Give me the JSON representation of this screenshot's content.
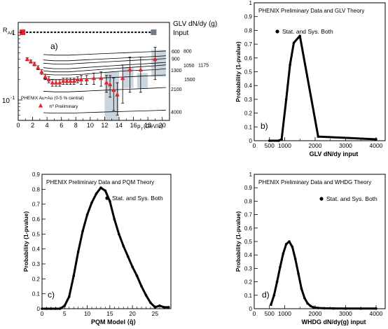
{
  "chart_data": [
    {
      "panel": "a)",
      "type": "scatter",
      "title": "",
      "xlabel_main": "p",
      "xlabel_sub": "T",
      "xlabel_unit": "(GeV/c)",
      "ylabel_main": "R",
      "ylabel_sub": "AA",
      "xlim": [
        0,
        21
      ],
      "ylim": [
        0.05,
        1.4
      ],
      "yscale": "log",
      "x_ticks": [
        0,
        2,
        4,
        6,
        8,
        10,
        12,
        14,
        16,
        18,
        20
      ],
      "y_tick_labels": [
        {
          "value": 1,
          "label": "1"
        },
        {
          "value": 0.1,
          "label": "10",
          "sup": "-1"
        }
      ],
      "theory_header": "GLV dN/dy (g)",
      "theory_header2": "Input",
      "theory_curves": [
        {
          "label": "600",
          "x": [
            3.5,
            5,
            7,
            9,
            11,
            13,
            15,
            17,
            19,
            20.5
          ],
          "y": [
            0.47,
            0.46,
            0.46,
            0.47,
            0.48,
            0.49,
            0.5,
            0.51,
            0.52,
            0.53
          ]
        },
        {
          "label": "800",
          "x": [
            3.5,
            5,
            7,
            9,
            11,
            13,
            15,
            17,
            19,
            20.5
          ],
          "y": [
            0.39,
            0.38,
            0.38,
            0.39,
            0.4,
            0.41,
            0.42,
            0.43,
            0.44,
            0.45
          ]
        },
        {
          "label": "900",
          "x": [
            3.5,
            5,
            7,
            9,
            11,
            13,
            15,
            17,
            19,
            20.5
          ],
          "y": [
            0.35,
            0.34,
            0.34,
            0.35,
            0.36,
            0.37,
            0.38,
            0.39,
            0.4,
            0.41
          ]
        },
        {
          "label": "1050",
          "x": [
            3.5,
            5,
            7,
            9,
            11,
            13,
            15,
            17,
            19,
            20.5
          ],
          "y": [
            0.3,
            0.29,
            0.29,
            0.3,
            0.31,
            0.32,
            0.33,
            0.34,
            0.35,
            0.36
          ]
        },
        {
          "label": "1175",
          "x": [
            3.5,
            5,
            7,
            9,
            11,
            13,
            15,
            17,
            19,
            20.5
          ],
          "y": [
            0.27,
            0.26,
            0.26,
            0.27,
            0.28,
            0.29,
            0.3,
            0.31,
            0.32,
            0.33
          ]
        },
        {
          "label": "1300",
          "x": [
            3.5,
            5,
            7,
            9,
            11,
            13,
            15,
            17,
            19,
            20.5
          ],
          "y": [
            0.24,
            0.235,
            0.235,
            0.24,
            0.25,
            0.26,
            0.27,
            0.275,
            0.28,
            0.29
          ]
        },
        {
          "label": "1500",
          "x": [
            3.5,
            5,
            7,
            9,
            11,
            13,
            15,
            17,
            19,
            20.5
          ],
          "y": [
            0.205,
            0.2,
            0.2,
            0.205,
            0.21,
            0.215,
            0.22,
            0.225,
            0.23,
            0.235
          ]
        },
        {
          "label": "2100",
          "x": [
            3.5,
            5,
            7,
            9,
            11,
            13,
            15,
            17,
            19,
            20.5
          ],
          "y": [
            0.135,
            0.132,
            0.132,
            0.135,
            0.138,
            0.141,
            0.144,
            0.147,
            0.15,
            0.153
          ]
        },
        {
          "label": "4000",
          "x": [
            3.5,
            5,
            7,
            9,
            11,
            13,
            15,
            17,
            19,
            20.5
          ],
          "y": [
            0.065,
            0.064,
            0.064,
            0.065,
            0.066,
            0.067,
            0.068,
            0.069,
            0.07,
            0.071
          ]
        }
      ],
      "series": [
        {
          "name": "π⁰ Preliminary",
          "legend_header": "PHENIX Au+Au (0-5 % central)",
          "x": [
            1.25,
            1.75,
            2.25,
            2.75,
            3.25,
            3.75,
            4.25,
            4.75,
            5.25,
            5.75,
            6.25,
            6.75,
            7.25,
            7.75,
            8.25,
            8.75,
            9.5,
            10.5,
            11.5,
            12.25,
            12.75,
            13.25,
            13.75,
            14.5,
            15.5,
            17,
            19
          ],
          "y": [
            0.4,
            0.37,
            0.34,
            0.3,
            0.26,
            0.22,
            0.2,
            0.18,
            0.18,
            0.18,
            0.19,
            0.19,
            0.19,
            0.19,
            0.2,
            0.2,
            0.2,
            0.21,
            0.21,
            0.18,
            0.17,
            0.14,
            0.12,
            0.21,
            0.28,
            0.28,
            0.4
          ],
          "yerr": [
            0.02,
            0.02,
            0.02,
            0.02,
            0.02,
            0.02,
            0.02,
            0.02,
            0.02,
            0.02,
            0.02,
            0.02,
            0.02,
            0.02,
            0.02,
            0.03,
            0.03,
            0.04,
            0.05,
            0.05,
            0.06,
            0.07,
            0.06,
            0.12,
            0.15,
            0.15,
            0.2
          ]
        }
      ],
      "sys_boxes": [
        {
          "x0": 12,
          "x1": 14,
          "y0": 0.05,
          "y1": 0.26
        },
        {
          "x0": 14.5,
          "x1": 16,
          "y0": 0.15,
          "y1": 0.3
        },
        {
          "x0": 16.5,
          "x1": 18,
          "y0": 0.15,
          "y1": 0.25
        },
        {
          "x0": 18.5,
          "x1": 20.5,
          "y0": 0.22,
          "y1": 0.55
        }
      ],
      "reference_line_y": 1,
      "normalization_markers": [
        {
          "x": 0.6,
          "y": 1,
          "color": "#e8212b"
        },
        {
          "x": 18.8,
          "y": 1,
          "color": "#707b86"
        }
      ]
    },
    {
      "panel": "b)",
      "type": "line",
      "title": "PHENIX Preliminary Data and GLV Theory",
      "legend": "Stat. and Sys. Both",
      "xlabel": "GLV dN/dy input",
      "ylabel": "Probability (1-pvalue)",
      "xlim": [
        0,
        4300
      ],
      "ylim": [
        0,
        1
      ],
      "x_ticks": [
        0,
        500,
        1000,
        2000,
        3000,
        4000
      ],
      "x_tick_labels": [
        "0",
        "500",
        "1000",
        "2000",
        "3000",
        "4000"
      ],
      "y_ticks": [
        0,
        0.1,
        0.2,
        0.3,
        0.4,
        0.5,
        0.6,
        0.7,
        0.8,
        0.9,
        1
      ],
      "series": [
        {
          "x": [
            500,
            800,
            900,
            1050,
            1175,
            1300,
            1500,
            2100,
            4000
          ],
          "y": [
            0,
            0,
            0.01,
            0.3,
            0.55,
            0.71,
            0.76,
            0.03,
            0.01
          ]
        }
      ]
    },
    {
      "panel": "c)",
      "type": "line",
      "title": "PHENIX Preliminary Data and PQM Theory",
      "legend": "Stat. and Sys. Both",
      "xlabel": "PQM Model ⟨q̂⟩",
      "ylabel": "Probability (1-pvalue)",
      "xlim": [
        0,
        28.5
      ],
      "ylim": [
        0,
        0.9
      ],
      "x_ticks": [
        0,
        5,
        10,
        15,
        20,
        25
      ],
      "y_ticks": [
        0,
        0.1,
        0.2,
        0.3,
        0.4,
        0.5,
        0.6,
        0.7,
        0.8,
        0.9
      ],
      "series": [
        {
          "x": [
            0,
            1,
            2,
            3,
            4,
            5,
            6,
            7,
            8,
            9,
            10,
            11,
            12,
            13,
            14,
            15,
            16,
            17,
            18,
            19,
            20,
            21,
            22,
            23,
            24,
            25,
            26,
            27,
            28
          ],
          "y": [
            0,
            0,
            0,
            0,
            0,
            0.02,
            0.08,
            0.22,
            0.38,
            0.52,
            0.63,
            0.71,
            0.77,
            0.81,
            0.79,
            0.72,
            0.6,
            0.5,
            0.42,
            0.35,
            0.28,
            0.22,
            0.15,
            0.09,
            0.04,
            0.01,
            0.02,
            0.01,
            0.01
          ]
        }
      ]
    },
    {
      "panel": "d)",
      "type": "line",
      "title": "PHENIX Preliminary Data and WHDG Theory",
      "legend": "Stat. and Sys. Both",
      "xlabel": "WHDG  dN/dy(g) input",
      "ylabel": "Probability (1-pvalue)",
      "xlim": [
        0,
        4300
      ],
      "ylim": [
        0,
        1
      ],
      "x_ticks": [
        0,
        500,
        1000,
        2000,
        3000,
        4000
      ],
      "x_tick_labels": [
        "0",
        "500",
        "1000",
        "2000",
        "3000",
        "4000"
      ],
      "y_ticks": [
        0,
        0.1,
        0.2,
        0.3,
        0.4,
        0.5,
        0.6,
        0.7,
        0.8,
        0.9,
        1
      ],
      "series": [
        {
          "x": [
            550,
            650,
            750,
            850,
            950,
            1050,
            1150,
            1250,
            1350,
            1450,
            1550,
            1650,
            1750,
            1850,
            1950,
            2100,
            2300,
            2600,
            3000,
            3500,
            4000
          ],
          "y": [
            0.03,
            0.1,
            0.2,
            0.31,
            0.41,
            0.48,
            0.5,
            0.46,
            0.37,
            0.26,
            0.15,
            0.08,
            0.04,
            0.02,
            0.01,
            0.005,
            0.003,
            0.002,
            0.001,
            0.001,
            0.001
          ]
        }
      ]
    }
  ]
}
